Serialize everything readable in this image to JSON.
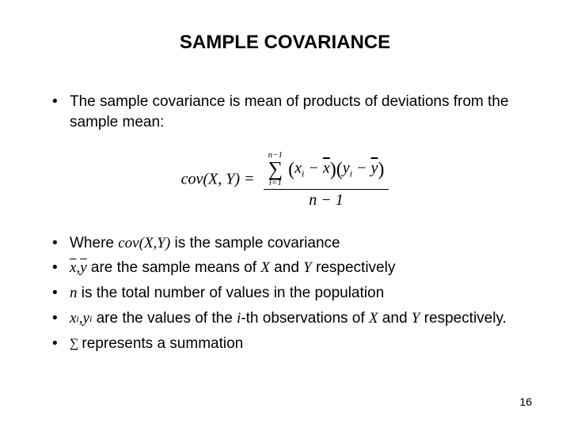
{
  "title": "SAMPLE COVARIANCE",
  "bullet1": "The sample covariance is mean of products of deviations from the sample mean:",
  "formula": {
    "lhs": "cov(X, Y) =",
    "upper_limit": "n−1",
    "lower_limit": "i=1",
    "term_open1": "(",
    "xi": "x",
    "xi_sub": "i",
    "minus1": " − ",
    "xbar": "x",
    "term_close1": ")",
    "term_open2": "(",
    "yi": "y",
    "yi_sub": "i",
    "minus2": " − ",
    "ybar": "y",
    "term_close2": ")",
    "denominator": "n − 1"
  },
  "bullet2_a": "Where ",
  "bullet2_b": "cov(X,Y)",
  "bullet2_c": " is the sample covariance",
  "bullet3_sym_x": "x",
  "bullet3_sym_sep": ", ",
  "bullet3_sym_y": "y",
  "bullet3_rest": " are the sample means of ",
  "bullet3_X": "X",
  "bullet3_and": " and ",
  "bullet3_Y": "Y",
  "bullet3_tail": " respectively",
  "bullet4_n": "n",
  "bullet4_rest": " is the total number of values in the population",
  "bullet5_xi": "x",
  "bullet5_xi_sub": "i",
  "bullet5_sep": " , ",
  "bullet5_yi": "y",
  "bullet5_yi_sub": "i",
  "bullet5_rest_a": " are the values of the ",
  "bullet5_i": "i",
  "bullet5_rest_b": "-th observations of ",
  "bullet5_X": "X",
  "bullet5_and": " and ",
  "bullet5_Y": "Y",
  "bullet5_tail": " respectively.",
  "bullet6_rest": "represents a summation",
  "page_number": "16",
  "colors": {
    "background": "#ffffff",
    "text": "#000000"
  }
}
